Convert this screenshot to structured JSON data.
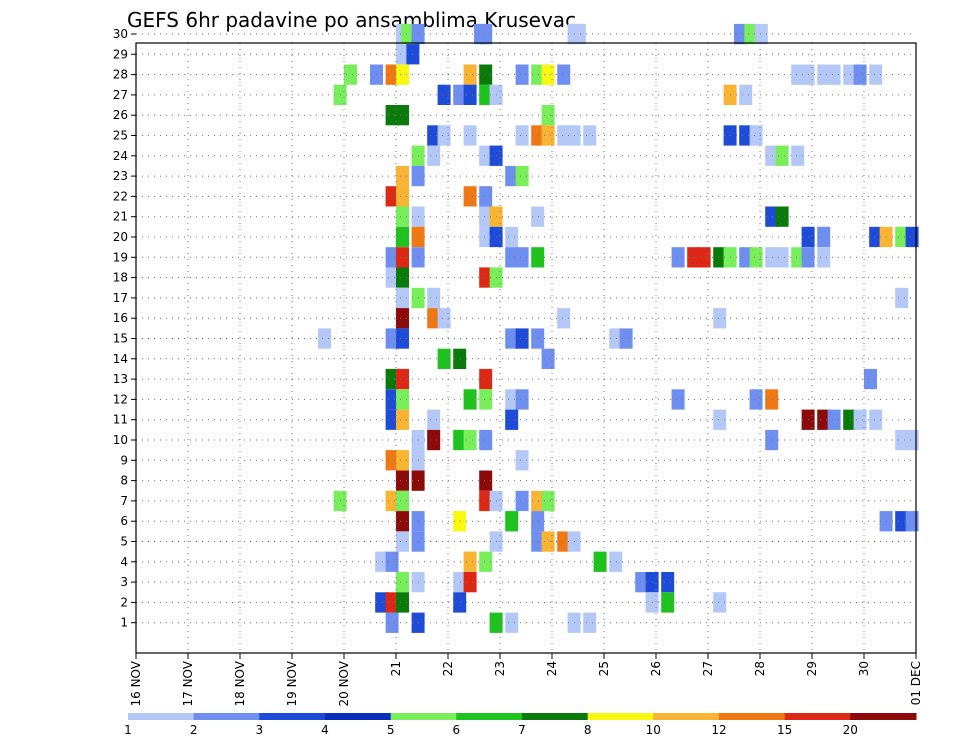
{
  "chart_data": {
    "type": "heatmap",
    "title": "GEFS 6hr padavine po ansamblima Krusevac",
    "x_tick_labels": [
      "16 NOV",
      "17 NOV",
      "18 NOV",
      "19 NOV",
      "20 NOV",
      "21",
      "22",
      "23",
      "24",
      "25",
      "26",
      "27",
      "28",
      "29",
      "30",
      "01 DEC"
    ],
    "y_range": [
      1,
      30
    ],
    "x_range_days": [
      16,
      31
    ],
    "grid": true,
    "legend_position": "bottom",
    "legend_levels": [
      "1",
      "2",
      "3",
      "4",
      "5",
      "6",
      "7",
      "8",
      "10",
      "12",
      "15",
      "20"
    ],
    "legend_colors": [
      "#b4c8f8",
      "#6e8ff0",
      "#1e4bd8",
      "#0a2fb8",
      "#78ee5a",
      "#1ec31e",
      "#0a7a0a",
      "#f8f810",
      "#f8b432",
      "#f07814",
      "#dc2814",
      "#8c0a0a"
    ],
    "cells": [
      [
        30,
        21.0,
        1
      ],
      [
        30,
        21.1,
        5
      ],
      [
        30,
        21.3,
        2
      ],
      [
        30,
        22.5,
        2
      ],
      [
        30,
        22.6,
        2
      ],
      [
        30,
        24.3,
        1
      ],
      [
        30,
        24.4,
        1
      ],
      [
        30,
        27.5,
        2
      ],
      [
        30,
        27.7,
        5
      ],
      [
        30,
        27.9,
        1
      ],
      [
        29,
        21.0,
        1
      ],
      [
        29,
        21.2,
        3
      ],
      [
        28,
        20.0,
        5
      ],
      [
        28,
        20.5,
        2
      ],
      [
        28,
        20.8,
        12
      ],
      [
        28,
        21.0,
        8
      ],
      [
        28,
        22.3,
        10
      ],
      [
        28,
        22.6,
        7
      ],
      [
        28,
        23.3,
        2
      ],
      [
        28,
        23.6,
        5
      ],
      [
        28,
        23.8,
        8
      ],
      [
        28,
        24.1,
        2
      ],
      [
        28,
        28.6,
        1
      ],
      [
        28,
        28.8,
        1
      ],
      [
        28,
        29.1,
        1
      ],
      [
        28,
        29.3,
        1
      ],
      [
        28,
        29.6,
        1
      ],
      [
        28,
        29.8,
        2
      ],
      [
        28,
        30.1,
        1
      ],
      [
        27,
        19.8,
        5
      ],
      [
        27,
        21.8,
        3
      ],
      [
        27,
        22.1,
        2
      ],
      [
        27,
        22.3,
        3
      ],
      [
        27,
        22.6,
        6
      ],
      [
        27,
        22.8,
        1
      ],
      [
        27,
        27.3,
        10
      ],
      [
        27,
        27.6,
        1
      ],
      [
        26,
        20.8,
        7
      ],
      [
        26,
        21.0,
        7
      ],
      [
        26,
        23.8,
        5
      ],
      [
        25,
        21.6,
        3
      ],
      [
        25,
        21.8,
        1
      ],
      [
        25,
        22.3,
        1
      ],
      [
        25,
        23.3,
        1
      ],
      [
        25,
        23.6,
        12
      ],
      [
        25,
        23.8,
        10
      ],
      [
        25,
        24.1,
        1
      ],
      [
        25,
        24.3,
        1
      ],
      [
        25,
        24.6,
        1
      ],
      [
        25,
        27.3,
        3
      ],
      [
        25,
        27.6,
        3
      ],
      [
        25,
        27.8,
        1
      ],
      [
        24,
        21.3,
        5
      ],
      [
        24,
        21.6,
        1
      ],
      [
        24,
        22.6,
        1
      ],
      [
        24,
        22.8,
        3
      ],
      [
        24,
        28.1,
        1
      ],
      [
        24,
        28.3,
        5
      ],
      [
        24,
        28.6,
        1
      ],
      [
        23,
        21.0,
        10
      ],
      [
        23,
        21.3,
        2
      ],
      [
        23,
        23.1,
        2
      ],
      [
        23,
        23.3,
        5
      ],
      [
        22,
        20.8,
        15
      ],
      [
        22,
        21.0,
        10
      ],
      [
        22,
        22.3,
        12
      ],
      [
        22,
        22.6,
        2
      ],
      [
        21,
        21.0,
        5
      ],
      [
        21,
        21.3,
        1
      ],
      [
        21,
        22.6,
        1
      ],
      [
        21,
        22.8,
        10
      ],
      [
        21,
        23.6,
        1
      ],
      [
        21,
        28.1,
        3
      ],
      [
        21,
        28.3,
        7
      ],
      [
        20,
        21.0,
        6
      ],
      [
        20,
        21.3,
        12
      ],
      [
        20,
        22.6,
        1
      ],
      [
        20,
        22.8,
        3
      ],
      [
        20,
        23.1,
        1
      ],
      [
        20,
        28.8,
        3
      ],
      [
        20,
        29.1,
        2
      ],
      [
        20,
        30.1,
        3
      ],
      [
        20,
        30.3,
        10
      ],
      [
        20,
        30.6,
        5
      ],
      [
        20,
        30.8,
        3
      ],
      [
        19,
        20.8,
        2
      ],
      [
        19,
        21.0,
        15
      ],
      [
        19,
        21.3,
        2
      ],
      [
        19,
        23.1,
        2
      ],
      [
        19,
        23.3,
        2
      ],
      [
        19,
        23.6,
        6
      ],
      [
        19,
        26.3,
        2
      ],
      [
        19,
        26.6,
        15
      ],
      [
        19,
        26.8,
        15
      ],
      [
        19,
        27.1,
        7
      ],
      [
        19,
        27.3,
        5
      ],
      [
        19,
        27.6,
        2
      ],
      [
        19,
        27.8,
        5
      ],
      [
        19,
        28.1,
        1
      ],
      [
        19,
        28.3,
        1
      ],
      [
        19,
        28.6,
        5
      ],
      [
        19,
        28.8,
        2
      ],
      [
        19,
        29.1,
        1
      ],
      [
        18,
        20.8,
        1
      ],
      [
        18,
        21.0,
        7
      ],
      [
        18,
        22.6,
        15
      ],
      [
        18,
        22.8,
        5
      ],
      [
        17,
        21.0,
        1
      ],
      [
        17,
        21.3,
        5
      ],
      [
        17,
        21.6,
        1
      ],
      [
        17,
        30.6,
        1
      ],
      [
        16,
        21.0,
        20
      ],
      [
        16,
        21.6,
        12
      ],
      [
        16,
        21.8,
        1
      ],
      [
        16,
        24.1,
        1
      ],
      [
        16,
        27.1,
        1
      ],
      [
        15,
        19.5,
        1
      ],
      [
        15,
        20.8,
        2
      ],
      [
        15,
        21.0,
        3
      ],
      [
        15,
        23.1,
        2
      ],
      [
        15,
        23.3,
        3
      ],
      [
        15,
        23.6,
        2
      ],
      [
        15,
        25.1,
        1
      ],
      [
        15,
        25.3,
        2
      ],
      [
        14,
        21.8,
        6
      ],
      [
        14,
        22.1,
        7
      ],
      [
        14,
        23.8,
        2
      ],
      [
        13,
        20.8,
        7
      ],
      [
        13,
        21.0,
        15
      ],
      [
        13,
        22.6,
        15
      ],
      [
        13,
        30.0,
        2
      ],
      [
        12,
        20.8,
        3
      ],
      [
        12,
        21.0,
        5
      ],
      [
        12,
        22.3,
        6
      ],
      [
        12,
        22.6,
        5
      ],
      [
        12,
        23.1,
        1
      ],
      [
        12,
        23.3,
        2
      ],
      [
        12,
        26.3,
        2
      ],
      [
        12,
        27.8,
        2
      ],
      [
        12,
        28.1,
        12
      ],
      [
        11,
        20.8,
        3
      ],
      [
        11,
        21.0,
        10
      ],
      [
        11,
        21.6,
        1
      ],
      [
        11,
        23.1,
        3
      ],
      [
        11,
        27.1,
        1
      ],
      [
        11,
        28.8,
        20
      ],
      [
        11,
        29.1,
        20
      ],
      [
        11,
        29.3,
        2
      ],
      [
        11,
        29.6,
        7
      ],
      [
        11,
        29.8,
        1
      ],
      [
        11,
        30.1,
        1
      ],
      [
        10,
        21.3,
        1
      ],
      [
        10,
        21.6,
        20
      ],
      [
        10,
        22.1,
        6
      ],
      [
        10,
        22.3,
        5
      ],
      [
        10,
        22.6,
        2
      ],
      [
        10,
        28.1,
        2
      ],
      [
        10,
        30.6,
        1
      ],
      [
        10,
        30.8,
        1
      ],
      [
        9,
        20.8,
        12
      ],
      [
        9,
        21.0,
        10
      ],
      [
        9,
        21.3,
        1
      ],
      [
        9,
        23.3,
        1
      ],
      [
        8,
        21.0,
        20
      ],
      [
        8,
        21.3,
        20
      ],
      [
        8,
        22.6,
        20
      ],
      [
        7,
        19.8,
        5
      ],
      [
        7,
        20.8,
        10
      ],
      [
        7,
        21.0,
        5
      ],
      [
        7,
        22.6,
        15
      ],
      [
        7,
        22.8,
        1
      ],
      [
        7,
        23.3,
        2
      ],
      [
        7,
        23.6,
        10
      ],
      [
        7,
        23.8,
        5
      ],
      [
        6,
        21.0,
        20
      ],
      [
        6,
        21.3,
        2
      ],
      [
        6,
        22.1,
        8
      ],
      [
        6,
        23.1,
        6
      ],
      [
        6,
        23.6,
        2
      ],
      [
        6,
        30.3,
        2
      ],
      [
        6,
        30.6,
        3
      ],
      [
        6,
        30.8,
        2
      ],
      [
        5,
        21.0,
        1
      ],
      [
        5,
        21.3,
        2
      ],
      [
        5,
        22.8,
        1
      ],
      [
        5,
        23.6,
        2
      ],
      [
        5,
        23.8,
        10
      ],
      [
        5,
        24.1,
        12
      ],
      [
        5,
        24.3,
        1
      ],
      [
        4,
        20.6,
        1
      ],
      [
        4,
        20.8,
        2
      ],
      [
        4,
        22.3,
        10
      ],
      [
        4,
        22.6,
        5
      ],
      [
        4,
        24.8,
        6
      ],
      [
        4,
        25.1,
        1
      ],
      [
        3,
        21.0,
        5
      ],
      [
        3,
        21.3,
        1
      ],
      [
        3,
        22.1,
        1
      ],
      [
        3,
        22.3,
        15
      ],
      [
        3,
        25.6,
        2
      ],
      [
        3,
        25.8,
        3
      ],
      [
        3,
        26.1,
        3
      ],
      [
        2,
        20.6,
        3
      ],
      [
        2,
        20.8,
        15
      ],
      [
        2,
        21.0,
        7
      ],
      [
        2,
        22.1,
        3
      ],
      [
        2,
        25.8,
        1
      ],
      [
        2,
        26.1,
        6
      ],
      [
        2,
        27.1,
        1
      ],
      [
        1,
        20.8,
        2
      ],
      [
        1,
        21.3,
        3
      ],
      [
        1,
        22.8,
        6
      ],
      [
        1,
        23.1,
        1
      ],
      [
        1,
        24.3,
        1
      ],
      [
        1,
        24.6,
        1
      ]
    ]
  }
}
